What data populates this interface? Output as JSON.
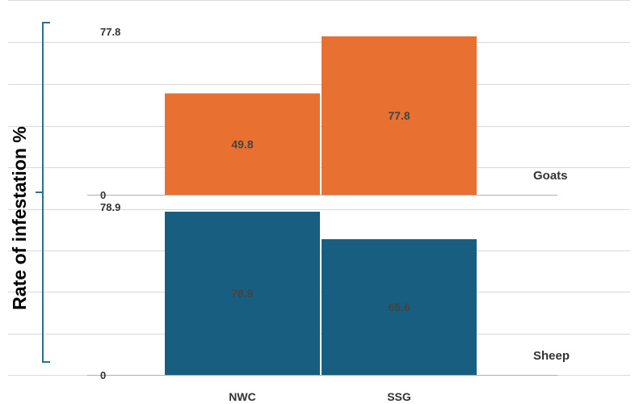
{
  "chart_data": {
    "type": "bar",
    "ylabel": "Rate of infestation %",
    "categories": [
      "NWC",
      "SSG"
    ],
    "panels": [
      {
        "name": "Goats",
        "color": "#e87131",
        "label_color": "#444444",
        "values": [
          49.8,
          77.8
        ],
        "data_labels": [
          "49.8",
          "77.8"
        ],
        "ylim": [
          0,
          77.8
        ],
        "tick_labels": {
          "min": "0",
          "max": "77.8"
        }
      },
      {
        "name": "Sheep",
        "color": "#175e81",
        "label_color": "#444444",
        "values": [
          78.9,
          65.6
        ],
        "data_labels": [
          "78.9",
          "65.6"
        ],
        "ylim": [
          0,
          78.9
        ],
        "tick_labels": {
          "min": "0",
          "max": "78.9"
        }
      }
    ],
    "grid": true
  }
}
